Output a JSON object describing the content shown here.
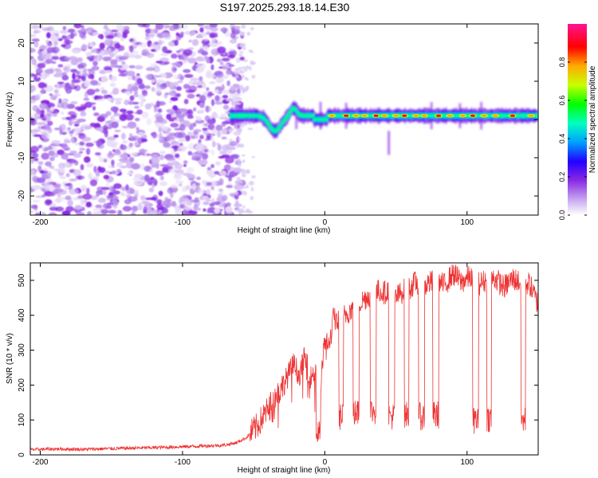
{
  "title": "S197.2025.293.18.14.E30",
  "chart_data": [
    {
      "type": "heatmap",
      "name": "spectrogram",
      "xlabel": "Height of straight line (km)",
      "ylabel": "Frequency (Hz)",
      "xlim": [
        -207,
        150
      ],
      "ylim": [
        -25,
        25
      ],
      "xticks": [
        -200,
        -100,
        0,
        100
      ],
      "yticks": [
        -20,
        -10,
        0,
        10,
        20
      ],
      "colorbar": {
        "label": "Normalized spectral amplitude",
        "range": [
          0,
          1
        ],
        "ticks": [
          0.0,
          0.2,
          0.4,
          0.6,
          0.8
        ],
        "tick_labels": [
          "0.0",
          "0.2",
          "0.4",
          "0.6",
          "0.8"
        ],
        "colormap": [
          "#ffffff",
          "#c8a8f0",
          "#8a2be2",
          "#2200ff",
          "#00a0ff",
          "#00ffc0",
          "#00ff00",
          "#c8ff00",
          "#ffaa00",
          "#ff0000",
          "#ff1493"
        ]
      },
      "description_values": {
        "noise_region_x": [
          -207,
          -58
        ],
        "signal_region_x": [
          -66,
          150
        ],
        "signal_center_freq_hz": 1,
        "signal_dip_x": -35,
        "signal_dip_freq_hz": -3,
        "signal_bump_x": -22,
        "signal_bump_freq_hz": 3,
        "peak_segments_x": [
          5,
          15,
          22,
          28,
          36,
          42,
          50,
          56,
          64,
          70,
          80,
          88,
          97,
          104,
          112,
          120,
          132,
          145
        ]
      }
    },
    {
      "type": "line",
      "name": "snr",
      "xlabel": "Height of straight line (km)",
      "ylabel": "SNR (10 * v/v)",
      "xlim": [
        -207,
        150
      ],
      "ylim": [
        0,
        550
      ],
      "xticks": [
        -200,
        -100,
        0,
        100
      ],
      "yticks": [
        0,
        100,
        200,
        300,
        400,
        500
      ],
      "color": "#ee3333",
      "series": [
        {
          "name": "SNR",
          "x": [
            -207,
            -190,
            -170,
            -150,
            -130,
            -110,
            -90,
            -70,
            -62,
            -55,
            -48,
            -40,
            -34,
            -28,
            -22,
            -18,
            -14,
            -10,
            -6,
            -3,
            0,
            3,
            6,
            10,
            14,
            18,
            22,
            26,
            30,
            34,
            38,
            42,
            46,
            50,
            55,
            60,
            64,
            68,
            72,
            78,
            84,
            90,
            96,
            102,
            108,
            114,
            120,
            126,
            132,
            138,
            144,
            150
          ],
          "y": [
            15,
            17,
            16,
            18,
            20,
            22,
            25,
            28,
            35,
            50,
            80,
            130,
            170,
            210,
            260,
            230,
            280,
            220,
            250,
            200,
            330,
            310,
            390,
            380,
            400,
            415,
            430,
            440,
            455,
            460,
            470,
            465,
            475,
            450,
            470,
            480,
            495,
            470,
            490,
            500,
            485,
            520,
            495,
            510,
            490,
            500,
            505,
            480,
            505,
            495,
            490,
            430
          ]
        }
      ],
      "dropouts": [
        {
          "x": [
            -6,
            -3
          ],
          "y": 60
        },
        {
          "x": [
            10,
            13
          ],
          "y": 110
        },
        {
          "x": [
            20,
            24
          ],
          "y": 120
        },
        {
          "x": [
            32,
            36
          ],
          "y": 125
        },
        {
          "x": [
            45,
            49
          ],
          "y": 110
        },
        {
          "x": [
            56,
            59
          ],
          "y": 115
        },
        {
          "x": [
            66,
            70
          ],
          "y": 110
        },
        {
          "x": [
            76,
            80
          ],
          "y": 115
        },
        {
          "x": [
            104,
            108
          ],
          "y": 100
        },
        {
          "x": [
            114,
            117
          ],
          "y": 105
        },
        {
          "x": [
            138,
            141
          ],
          "y": 100
        }
      ]
    }
  ]
}
